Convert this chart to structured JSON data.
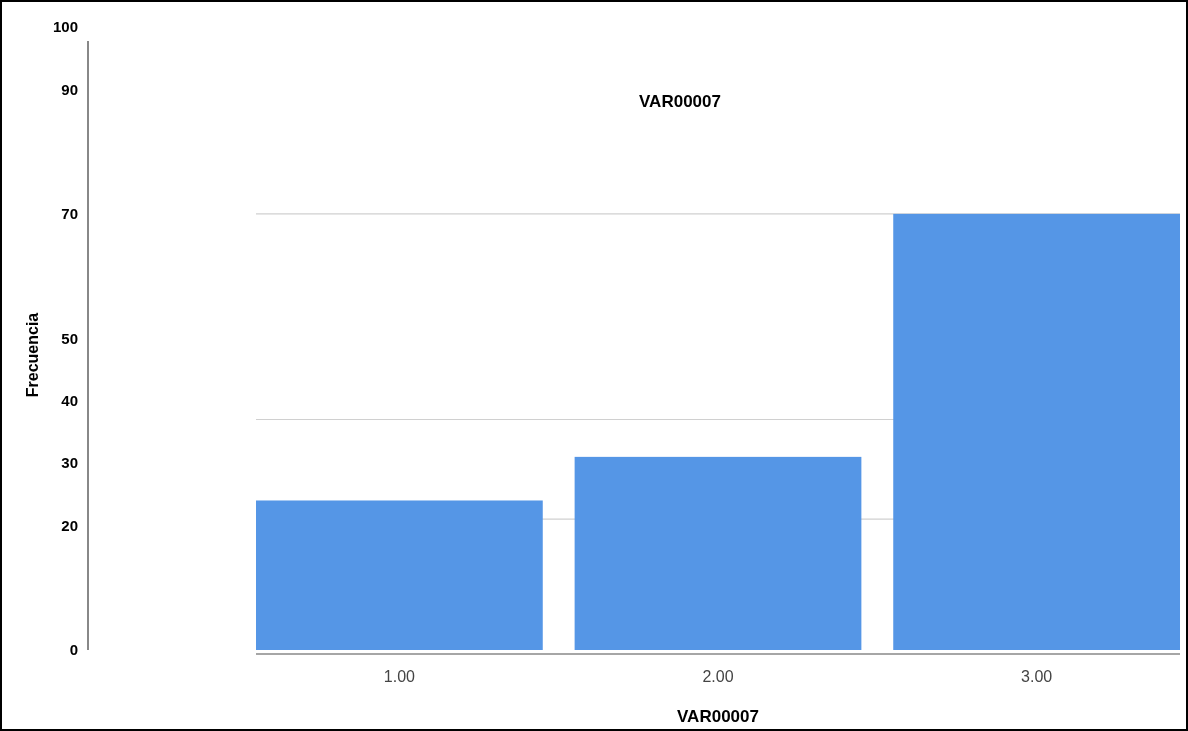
{
  "chart_data": {
    "type": "bar",
    "title": "VAR00007",
    "xlabel": "VAR00007",
    "ylabel": "Frecuencia",
    "categories": [
      "1.00",
      "2.00",
      "3.00"
    ],
    "values": [
      24,
      31,
      70
    ],
    "color": "#5596e6",
    "ylim": [
      0,
      100
    ],
    "yticks": [
      100,
      90,
      70,
      50,
      40,
      30,
      20,
      0
    ],
    "ref_lines": [
      {
        "axis": "y",
        "value": 70,
        "color": "#d0d0d0"
      },
      {
        "axis": "y",
        "value": 37,
        "color": "#d0d0d0"
      },
      {
        "axis": "y",
        "value": 21,
        "color": "#d0d0d0"
      }
    ],
    "grid": false
  }
}
